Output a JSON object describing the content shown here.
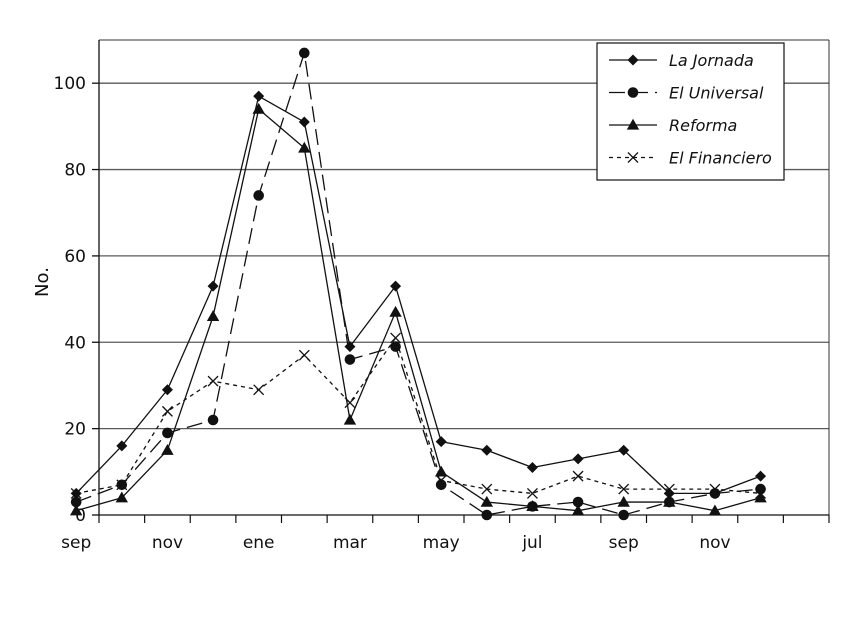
{
  "chart_data": {
    "type": "line",
    "ylabel": "No.",
    "xlabel": "",
    "ylim": [
      0,
      110
    ],
    "yticks": [
      0,
      20,
      40,
      60,
      80,
      100
    ],
    "x_points": 16,
    "xtick_labels": [
      "sep",
      "nov",
      "ene",
      "mar",
      "may",
      "jul",
      "sep",
      "nov"
    ],
    "xtick_label_positions": [
      1,
      3,
      5,
      7,
      9,
      11,
      13,
      15
    ],
    "grid": "horizontal",
    "legend_position": "top-right",
    "series": [
      {
        "name": "La Jornada",
        "style": "solid",
        "marker": "diamond",
        "values": [
          5,
          16,
          29,
          53,
          97,
          91,
          39,
          53,
          17,
          15,
          11,
          13,
          15,
          5,
          5,
          9
        ]
      },
      {
        "name": "El Universal",
        "style": "long-dash",
        "marker": "circle",
        "values": [
          3,
          7,
          19,
          22,
          74,
          107,
          36,
          39,
          7,
          0,
          2,
          3,
          0,
          3,
          5,
          6
        ]
      },
      {
        "name": "Reforma",
        "style": "solid",
        "marker": "triangle",
        "values": [
          1,
          4,
          15,
          46,
          94,
          85,
          22,
          47,
          10,
          3,
          2,
          1,
          3,
          3,
          1,
          4
        ]
      },
      {
        "name": "El Financiero",
        "style": "dotted",
        "marker": "x",
        "values": [
          5,
          7,
          24,
          31,
          29,
          37,
          26,
          41,
          8,
          6,
          5,
          9,
          6,
          6,
          6,
          5
        ]
      }
    ]
  }
}
